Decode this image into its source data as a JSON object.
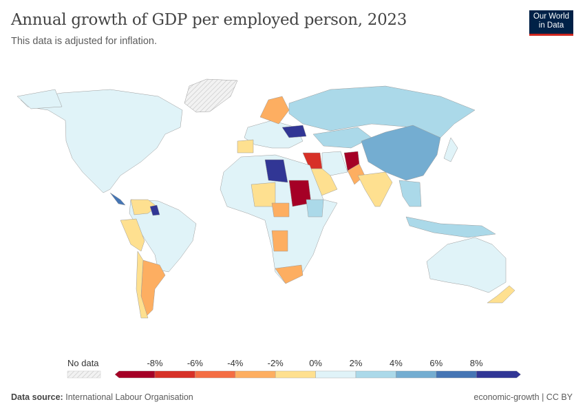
{
  "header": {
    "title": "Annual growth of GDP per employed person, 2023",
    "subtitle": "This data is adjusted for inflation.",
    "logo_text": "Our World in Data"
  },
  "legend": {
    "no_data_label": "No data",
    "ticks": [
      "-8%",
      "-6%",
      "-4%",
      "-2%",
      "0%",
      "2%",
      "4%",
      "6%",
      "8%"
    ],
    "bins": [
      {
        "range": "< -8%",
        "color": "#a50026"
      },
      {
        "range": "-8% to -6%",
        "color": "#d73027"
      },
      {
        "range": "-6% to -4%",
        "color": "#f46d43"
      },
      {
        "range": "-4% to -2%",
        "color": "#fdae61"
      },
      {
        "range": "-2% to 0%",
        "color": "#fee090"
      },
      {
        "range": "0% to 2%",
        "color": "#e0f3f8"
      },
      {
        "range": "2% to 4%",
        "color": "#abd9e9"
      },
      {
        "range": "4% to 6%",
        "color": "#74add1"
      },
      {
        "range": "6% to 8%",
        "color": "#4575b4"
      },
      {
        "range": "> 8%",
        "color": "#313695"
      }
    ],
    "no_data_color": "#e6e6e6"
  },
  "footer": {
    "source_label": "Data source:",
    "source": "International Labour Organisation",
    "slug_license": "economic-growth | CC BY"
  }
}
